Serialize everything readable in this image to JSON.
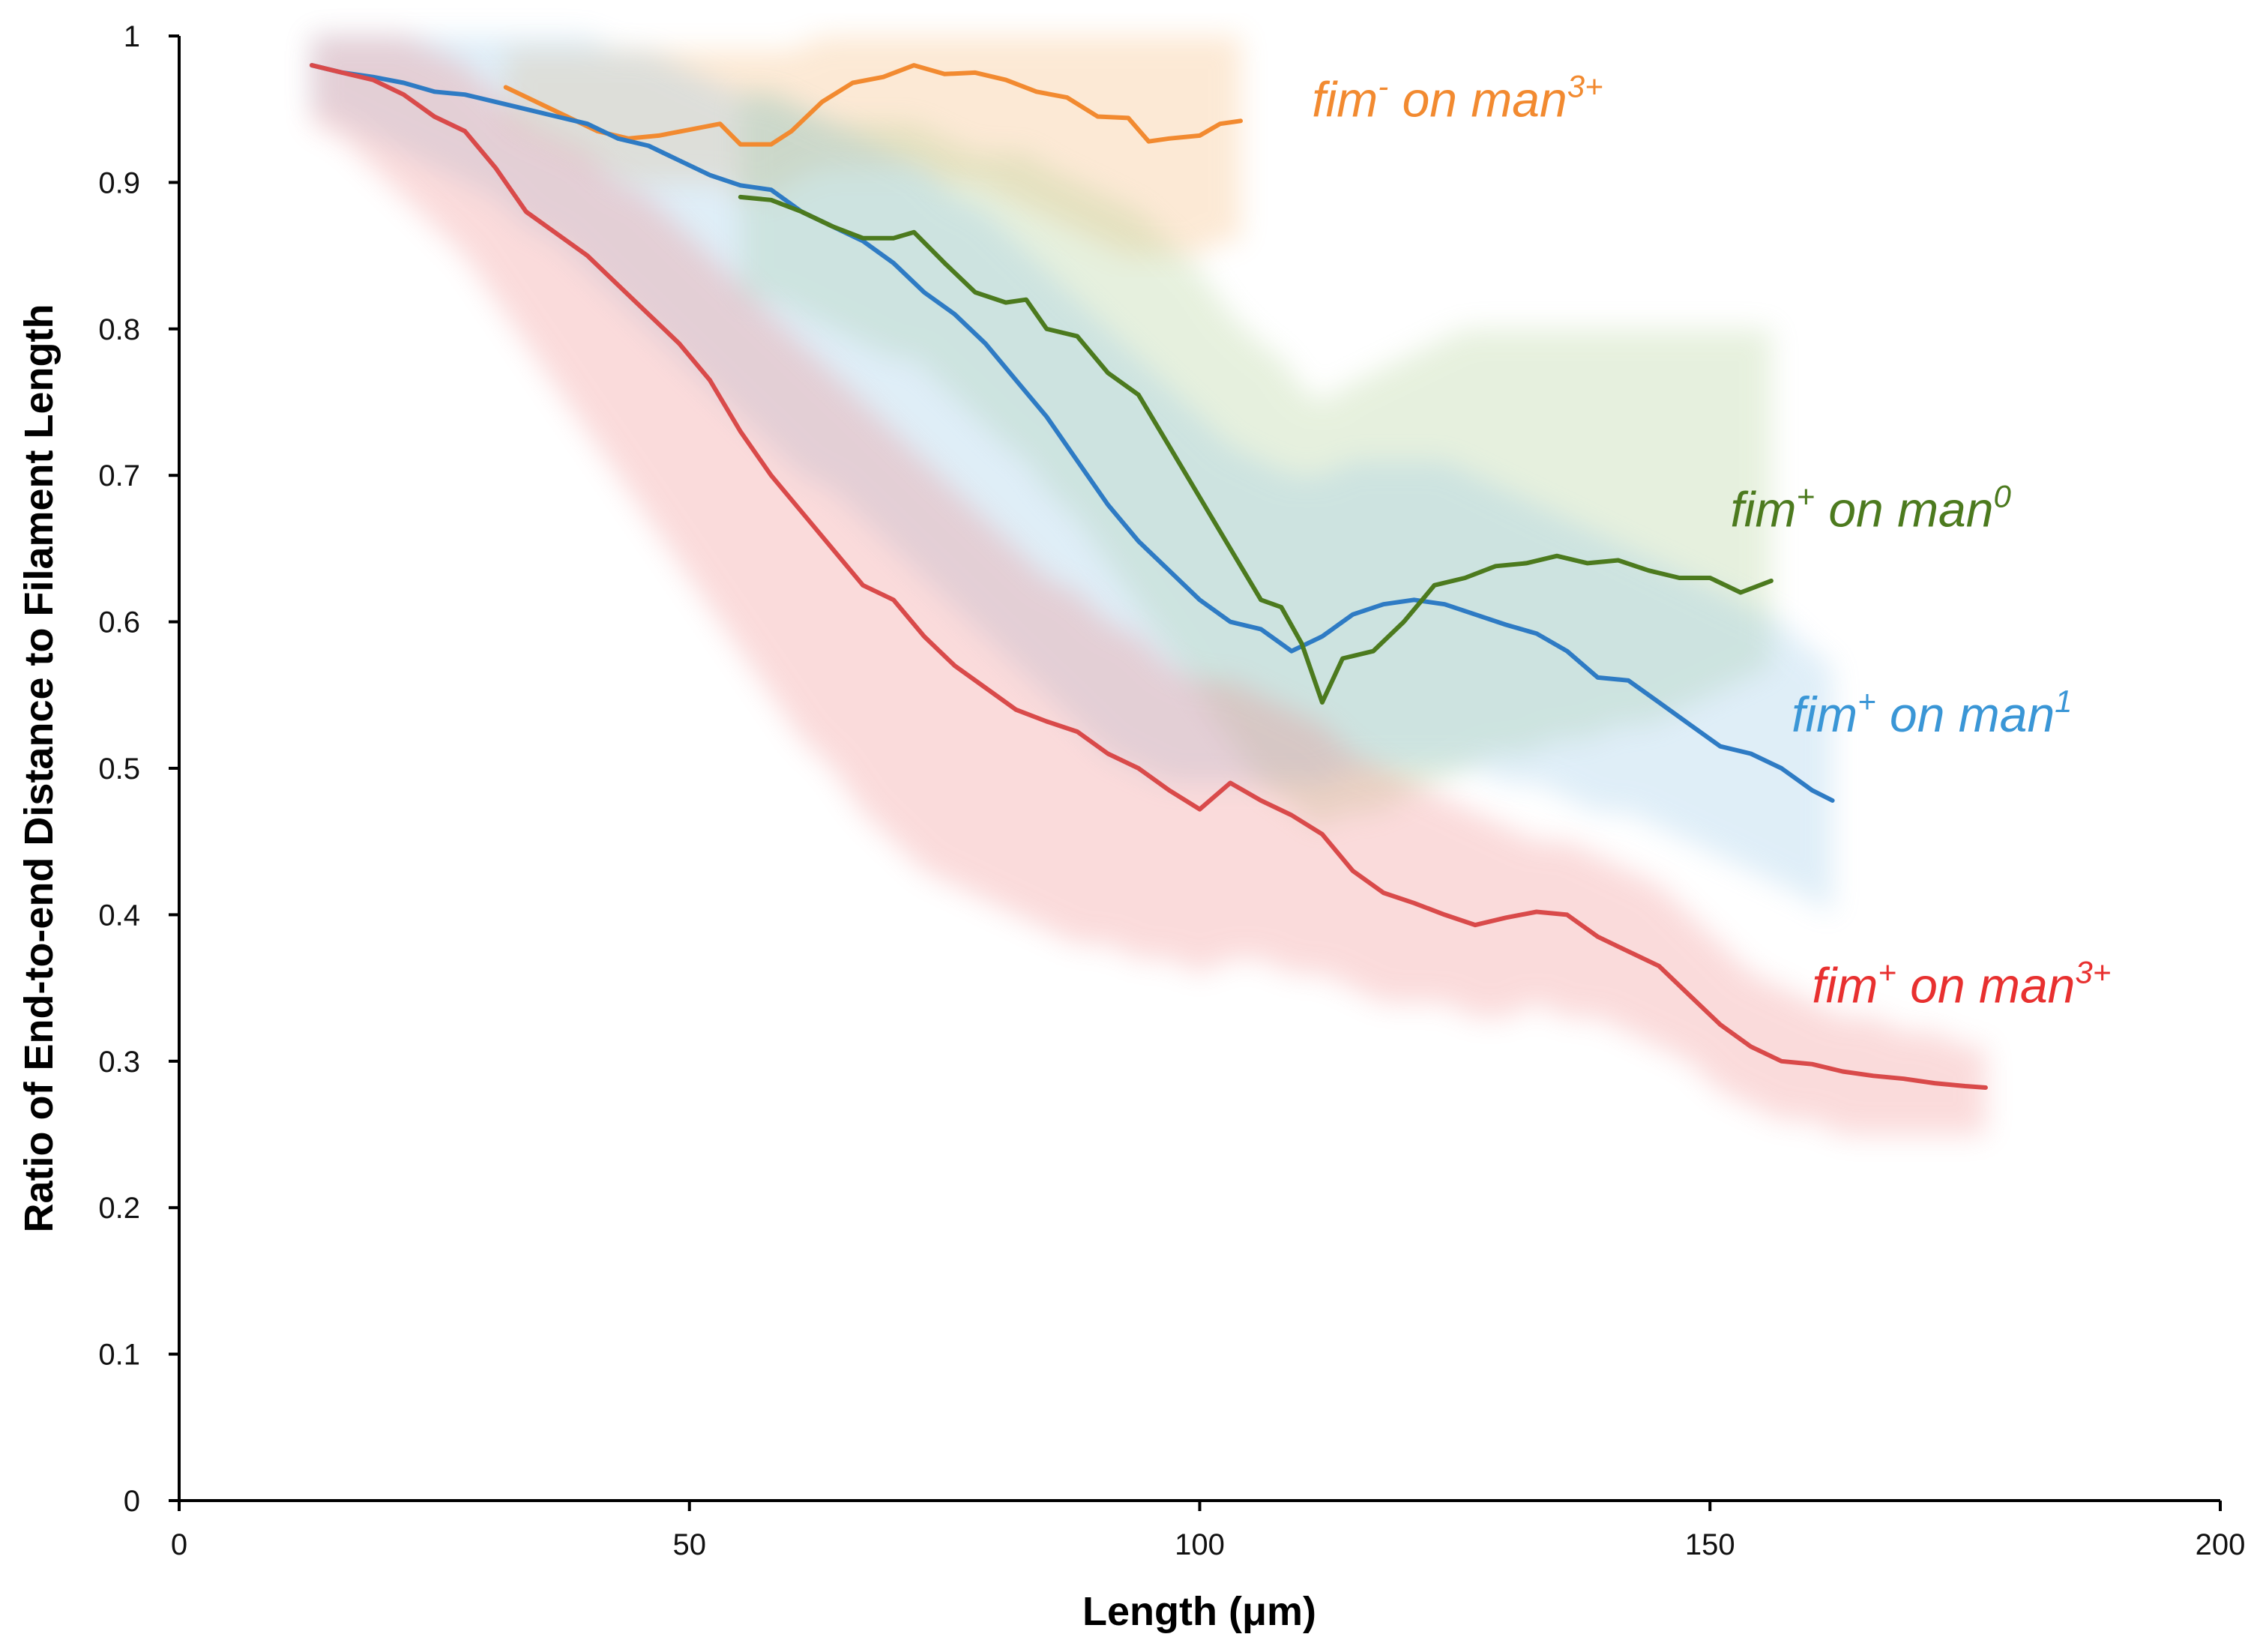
{
  "chart_data": {
    "type": "line",
    "title": "",
    "xlabel": "Length (μm)",
    "ylabel": "Ratio of End-to-end Distance to Filament Length",
    "xlim": [
      0,
      200
    ],
    "ylim": [
      0,
      1
    ],
    "xticks": [
      "0",
      "50",
      "100",
      "150",
      "200"
    ],
    "yticks": [
      "0",
      "0.1",
      "0.2",
      "0.3",
      "0.4",
      "0.5",
      "0.6",
      "0.7",
      "0.8",
      "0.9",
      "1"
    ],
    "grid": false,
    "legend": "inline labels at line ends",
    "series": [
      {
        "key": "orange",
        "name": "fim⁻ on man³⁺",
        "label_parts": [
          "fim",
          "-",
          " on man",
          "3+"
        ],
        "color": "#F28A30",
        "band_color": "#F6B26B",
        "x": [
          32,
          35,
          38,
          41,
          44,
          47,
          50,
          53,
          55,
          58,
          60,
          63,
          66,
          69,
          72,
          75,
          78,
          81,
          84,
          87,
          90,
          93,
          95,
          97,
          100,
          102,
          104
        ],
        "y": [
          0.965,
          0.955,
          0.945,
          0.935,
          0.93,
          0.932,
          0.936,
          0.94,
          0.926,
          0.926,
          0.935,
          0.955,
          0.968,
          0.972,
          0.98,
          0.974,
          0.975,
          0.97,
          0.962,
          0.958,
          0.945,
          0.944,
          0.928,
          0.93,
          0.932,
          0.94,
          0.942
        ],
        "band_lower": [
          0.94,
          0.93,
          0.92,
          0.91,
          0.9,
          0.9,
          0.9,
          0.9,
          0.89,
          0.89,
          0.9,
          0.91,
          0.91,
          0.91,
          0.91,
          0.9,
          0.9,
          0.89,
          0.88,
          0.87,
          0.86,
          0.85,
          0.85,
          0.85,
          0.85,
          0.86,
          0.86
        ],
        "band_upper": [
          0.99,
          0.99,
          0.99,
          0.99,
          0.99,
          0.99,
          0.99,
          0.99,
          0.99,
          0.99,
          0.99,
          1.0,
          1.0,
          1.0,
          1.0,
          1.0,
          1.0,
          1.0,
          1.0,
          1.0,
          1.0,
          1.0,
          1.0,
          1.0,
          1.0,
          1.0,
          1.0
        ]
      },
      {
        "key": "green",
        "name": "fim⁺ on man⁰",
        "label_parts": [
          "fim",
          "+",
          " on man",
          "0"
        ],
        "color": "#4C7A1E",
        "band_color": "#A9CC8A",
        "x": [
          55,
          58,
          61,
          64,
          67,
          70,
          72,
          75,
          78,
          81,
          83,
          85,
          88,
          91,
          94,
          97,
          100,
          103,
          106,
          108,
          110,
          112,
          114,
          117,
          120,
          123,
          126,
          129,
          132,
          135,
          138,
          141,
          144,
          147,
          150,
          153,
          156
        ],
        "y": [
          0.89,
          0.888,
          0.88,
          0.87,
          0.862,
          0.862,
          0.866,
          0.845,
          0.825,
          0.818,
          0.82,
          0.8,
          0.795,
          0.77,
          0.755,
          0.72,
          0.685,
          0.65,
          0.615,
          0.61,
          0.585,
          0.545,
          0.575,
          0.58,
          0.6,
          0.625,
          0.63,
          0.638,
          0.64,
          0.645,
          0.64,
          0.642,
          0.635,
          0.63,
          0.63,
          0.62,
          0.628
        ],
        "band_lower": [
          0.82,
          0.82,
          0.81,
          0.8,
          0.79,
          0.78,
          0.78,
          0.76,
          0.74,
          0.72,
          0.71,
          0.69,
          0.67,
          0.64,
          0.61,
          0.58,
          0.55,
          0.52,
          0.49,
          0.48,
          0.47,
          0.46,
          0.47,
          0.47,
          0.48,
          0.49,
          0.5,
          0.51,
          0.51,
          0.52,
          0.52,
          0.53,
          0.53,
          0.54,
          0.55,
          0.56,
          0.57
        ],
        "band_upper": [
          0.96,
          0.96,
          0.95,
          0.94,
          0.94,
          0.94,
          0.94,
          0.93,
          0.92,
          0.92,
          0.92,
          0.91,
          0.9,
          0.89,
          0.88,
          0.86,
          0.84,
          0.81,
          0.79,
          0.78,
          0.76,
          0.75,
          0.76,
          0.77,
          0.78,
          0.79,
          0.8,
          0.8,
          0.8,
          0.8,
          0.8,
          0.8,
          0.8,
          0.8,
          0.8,
          0.8,
          0.8
        ]
      },
      {
        "key": "blue",
        "name": "fim⁺ on man¹",
        "label_parts": [
          "fim",
          "+",
          " on man",
          "1"
        ],
        "color": "#2E7BC4",
        "band_color": "#8EC3E6",
        "x": [
          13,
          16,
          19,
          22,
          25,
          28,
          31,
          34,
          37,
          40,
          43,
          46,
          49,
          52,
          55,
          58,
          61,
          64,
          67,
          70,
          73,
          76,
          79,
          82,
          85,
          88,
          91,
          94,
          97,
          100,
          103,
          106,
          109,
          112,
          115,
          118,
          121,
          124,
          127,
          130,
          133,
          136,
          139,
          142,
          145,
          148,
          151,
          154,
          157,
          160,
          162
        ],
        "y": [
          0.98,
          0.975,
          0.972,
          0.968,
          0.962,
          0.96,
          0.955,
          0.95,
          0.945,
          0.94,
          0.93,
          0.925,
          0.915,
          0.905,
          0.898,
          0.895,
          0.88,
          0.87,
          0.86,
          0.845,
          0.825,
          0.81,
          0.79,
          0.765,
          0.74,
          0.71,
          0.68,
          0.655,
          0.635,
          0.615,
          0.6,
          0.595,
          0.58,
          0.59,
          0.605,
          0.612,
          0.615,
          0.612,
          0.605,
          0.598,
          0.592,
          0.58,
          0.562,
          0.56,
          0.545,
          0.53,
          0.515,
          0.51,
          0.5,
          0.485,
          0.478
        ],
        "band_lower": [
          0.95,
          0.94,
          0.93,
          0.92,
          0.91,
          0.9,
          0.89,
          0.87,
          0.86,
          0.84,
          0.82,
          0.8,
          0.78,
          0.76,
          0.74,
          0.72,
          0.7,
          0.69,
          0.67,
          0.65,
          0.63,
          0.61,
          0.59,
          0.57,
          0.55,
          0.53,
          0.51,
          0.5,
          0.49,
          0.49,
          0.49,
          0.49,
          0.49,
          0.49,
          0.5,
          0.5,
          0.5,
          0.5,
          0.5,
          0.49,
          0.49,
          0.48,
          0.47,
          0.47,
          0.46,
          0.45,
          0.44,
          0.43,
          0.42,
          0.41,
          0.4
        ],
        "band_upper": [
          1.0,
          1.0,
          1.0,
          1.0,
          1.0,
          1.0,
          1.0,
          1.0,
          1.0,
          1.0,
          0.99,
          0.99,
          0.98,
          0.97,
          0.96,
          0.96,
          0.95,
          0.94,
          0.93,
          0.92,
          0.91,
          0.89,
          0.88,
          0.86,
          0.84,
          0.82,
          0.8,
          0.78,
          0.76,
          0.74,
          0.72,
          0.71,
          0.7,
          0.7,
          0.71,
          0.71,
          0.71,
          0.71,
          0.7,
          0.69,
          0.68,
          0.67,
          0.66,
          0.65,
          0.64,
          0.63,
          0.62,
          0.61,
          0.6,
          0.58,
          0.57
        ]
      },
      {
        "key": "red",
        "name": "fim⁺ on man³⁺",
        "label_parts": [
          "fim",
          "+",
          " on man",
          "3+"
        ],
        "color": "#D94A4A",
        "band_color": "#F08080",
        "x": [
          13,
          16,
          19,
          22,
          25,
          28,
          31,
          34,
          37,
          40,
          43,
          46,
          49,
          52,
          55,
          58,
          61,
          64,
          67,
          70,
          73,
          76,
          79,
          82,
          85,
          88,
          91,
          94,
          97,
          100,
          103,
          106,
          109,
          112,
          115,
          118,
          121,
          124,
          127,
          130,
          133,
          136,
          139,
          142,
          145,
          148,
          151,
          154,
          157,
          160,
          163,
          166,
          169,
          172,
          175,
          177
        ],
        "y": [
          0.98,
          0.975,
          0.97,
          0.96,
          0.945,
          0.935,
          0.91,
          0.88,
          0.865,
          0.85,
          0.83,
          0.81,
          0.79,
          0.765,
          0.73,
          0.7,
          0.675,
          0.65,
          0.625,
          0.615,
          0.59,
          0.57,
          0.555,
          0.54,
          0.532,
          0.525,
          0.51,
          0.5,
          0.485,
          0.472,
          0.49,
          0.478,
          0.468,
          0.455,
          0.43,
          0.415,
          0.408,
          0.4,
          0.393,
          0.398,
          0.402,
          0.4,
          0.385,
          0.375,
          0.365,
          0.345,
          0.325,
          0.31,
          0.3,
          0.298,
          0.293,
          0.29,
          0.288,
          0.285,
          0.283,
          0.282
        ],
        "band_lower": [
          0.94,
          0.93,
          0.91,
          0.89,
          0.87,
          0.85,
          0.82,
          0.79,
          0.76,
          0.73,
          0.7,
          0.67,
          0.64,
          0.61,
          0.58,
          0.55,
          0.52,
          0.5,
          0.47,
          0.45,
          0.43,
          0.42,
          0.41,
          0.4,
          0.39,
          0.38,
          0.38,
          0.37,
          0.37,
          0.36,
          0.37,
          0.37,
          0.36,
          0.36,
          0.35,
          0.34,
          0.34,
          0.34,
          0.33,
          0.33,
          0.34,
          0.33,
          0.33,
          0.32,
          0.31,
          0.3,
          0.28,
          0.27,
          0.26,
          0.26,
          0.25,
          0.25,
          0.25,
          0.25,
          0.25,
          0.25
        ],
        "band_upper": [
          1.0,
          1.0,
          1.0,
          1.0,
          0.99,
          0.98,
          0.96,
          0.94,
          0.93,
          0.92,
          0.9,
          0.89,
          0.87,
          0.85,
          0.83,
          0.81,
          0.79,
          0.77,
          0.75,
          0.73,
          0.71,
          0.69,
          0.67,
          0.65,
          0.63,
          0.62,
          0.6,
          0.59,
          0.57,
          0.56,
          0.56,
          0.55,
          0.54,
          0.53,
          0.51,
          0.5,
          0.49,
          0.48,
          0.47,
          0.46,
          0.45,
          0.45,
          0.44,
          0.43,
          0.42,
          0.4,
          0.38,
          0.36,
          0.35,
          0.34,
          0.33,
          0.33,
          0.32,
          0.32,
          0.31,
          0.31
        ]
      }
    ]
  }
}
